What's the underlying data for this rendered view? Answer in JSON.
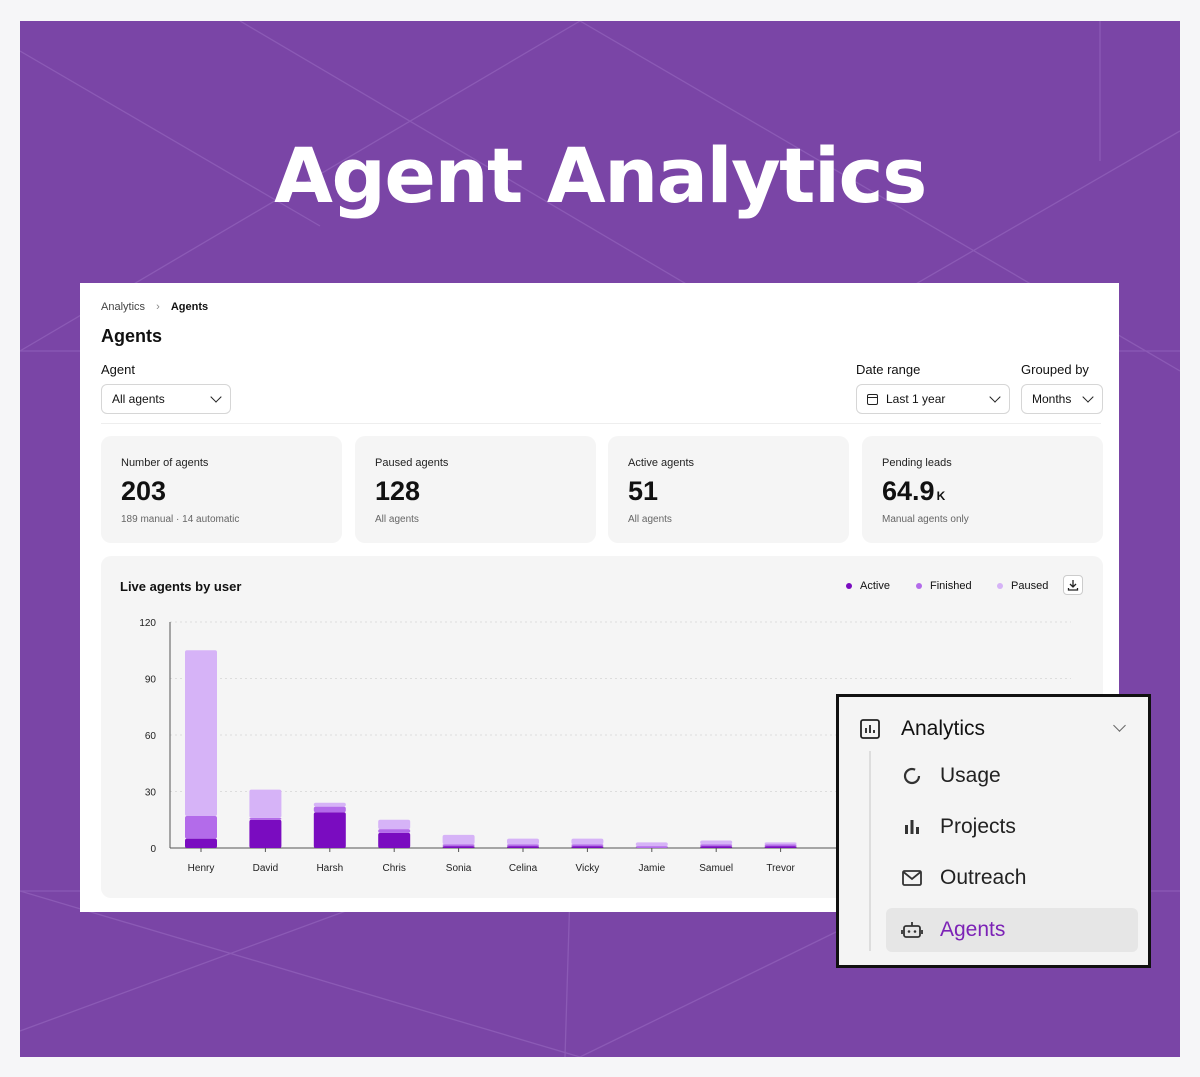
{
  "hero": {
    "title": "Agent Analytics"
  },
  "breadcrumb": {
    "parent": "Analytics",
    "separator": "›",
    "current": "Agents"
  },
  "page": {
    "title": "Agents"
  },
  "filters": {
    "agent_label": "Agent",
    "agent_value": "All agents",
    "date_label": "Date range",
    "date_value": "Last 1 year",
    "group_label": "Grouped by",
    "group_value": "Months"
  },
  "stats": [
    {
      "title": "Number of agents",
      "value": "203",
      "suffix": "",
      "sub": "189 manual · 14 automatic"
    },
    {
      "title": "Paused agents",
      "value": "128",
      "suffix": "",
      "sub": "All agents"
    },
    {
      "title": "Active agents",
      "value": "51",
      "suffix": "",
      "sub": "All agents"
    },
    {
      "title": "Pending leads",
      "value": "64.9",
      "suffix": "K",
      "sub": "Manual agents only"
    }
  ],
  "colors": {
    "active": "#7a0cc0",
    "finished": "#b36bea",
    "paused": "#d6b3f7",
    "brand": "#7a45a6"
  },
  "chart_data": {
    "type": "bar",
    "stacked": true,
    "title": "Live agents by user",
    "categories": [
      "Henry",
      "David",
      "Harsh",
      "Chris",
      "Sonia",
      "Celina",
      "Vicky",
      "Jamie",
      "Samuel",
      "Trevor"
    ],
    "series": [
      {
        "name": "Active",
        "values": [
          5,
          15,
          19,
          8,
          1,
          1,
          1,
          0,
          1,
          1
        ]
      },
      {
        "name": "Finished",
        "values": [
          12,
          1,
          3,
          2,
          1,
          1,
          1,
          1,
          1,
          1
        ]
      },
      {
        "name": "Paused",
        "values": [
          88,
          15,
          2,
          5,
          5,
          3,
          3,
          2,
          2,
          1
        ]
      }
    ],
    "y_ticks": [
      0,
      30,
      60,
      90,
      120
    ],
    "ylim": [
      0,
      120
    ],
    "legend_position": "top-right",
    "grid": true
  },
  "nav": {
    "header": "Analytics",
    "items": [
      {
        "label": "Usage",
        "icon": "circle-dash-icon"
      },
      {
        "label": "Projects",
        "icon": "bar-chart-icon"
      },
      {
        "label": "Outreach",
        "icon": "mail-icon"
      },
      {
        "label": "Agents",
        "icon": "robot-icon",
        "active": true
      }
    ]
  }
}
